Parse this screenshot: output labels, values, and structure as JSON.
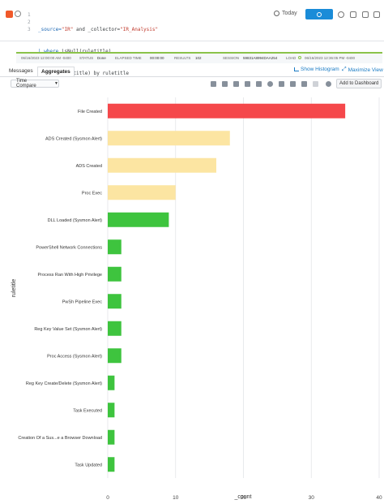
{
  "editor": {
    "line_numbers": [
      "1",
      "2",
      "3"
    ],
    "lines": [
      {
        "kw1": "_source=",
        "str1": "\"IR\"",
        "mid": " and _collector=",
        "str2": "\"IR_Analysis\""
      },
      {
        "kw1": "| where ",
        "rest": "isNull(ruletitle)"
      },
      {
        "kw1": "| ",
        "rest": "count(ruletitle) by ruletitle"
      }
    ],
    "time_range": "Today"
  },
  "status_bar": {
    "start_time": "06/16/2023 12:00:00 AM -0400",
    "status_label": "STATUS",
    "status_value": "Done",
    "elapsed_label": "ELAPSED TIME",
    "elapsed_value": "00:00:00",
    "results_label": "RESULTS",
    "results_value": "102",
    "session_label": "SESSION",
    "session_value": "59831A8994DAA254",
    "load_label": "LOAD",
    "end_time": "06/16/2023 12:36:05 PM -0400"
  },
  "tabs": [
    {
      "label": "Messages",
      "active": false
    },
    {
      "label": "Aggregates",
      "active": true
    }
  ],
  "links": {
    "show_histogram": "Show Histogram",
    "maximize_view": "Maximize View"
  },
  "toolbar": {
    "time_compare": "Time Compare",
    "add_to_dashboard": "Add to Dashboard"
  },
  "chart_data": {
    "type": "bar",
    "orientation": "horizontal",
    "categories": [
      "File Created",
      "ADS Created (Sysmon Alert)",
      "ADS Created",
      "Proc Exec",
      "DLL Loaded (Sysmon Alert)",
      "PowerShell Network Connections",
      "Process Ran With High Privilege",
      "PwSh Pipeline Exec",
      "Reg Key Value Set (Sysmon Alert)",
      "Proc Access (Sysmon Alert)",
      "Reg Key Create/Delete (Sysmon Alert)",
      "Task Executed",
      "Creation Of a Sus...e a Browser Download",
      "Task Updated"
    ],
    "values": [
      35,
      18,
      16,
      10,
      9,
      2,
      2,
      2,
      2,
      2,
      1,
      1,
      1,
      1
    ],
    "bar_colors": [
      "#f5484b",
      "#fce5a2",
      "#fce5a2",
      "#fce5a2",
      "#3ec43e",
      "#3ec43e",
      "#3ec43e",
      "#3ec43e",
      "#3ec43e",
      "#3ec43e",
      "#3ec43e",
      "#3ec43e",
      "#3ec43e",
      "#3ec43e"
    ],
    "x_ticks": [
      0,
      10,
      20,
      30,
      40
    ],
    "xlim": [
      0,
      40
    ],
    "xlabel": "_count",
    "ylabel": "ruletitle",
    "grid": true
  }
}
